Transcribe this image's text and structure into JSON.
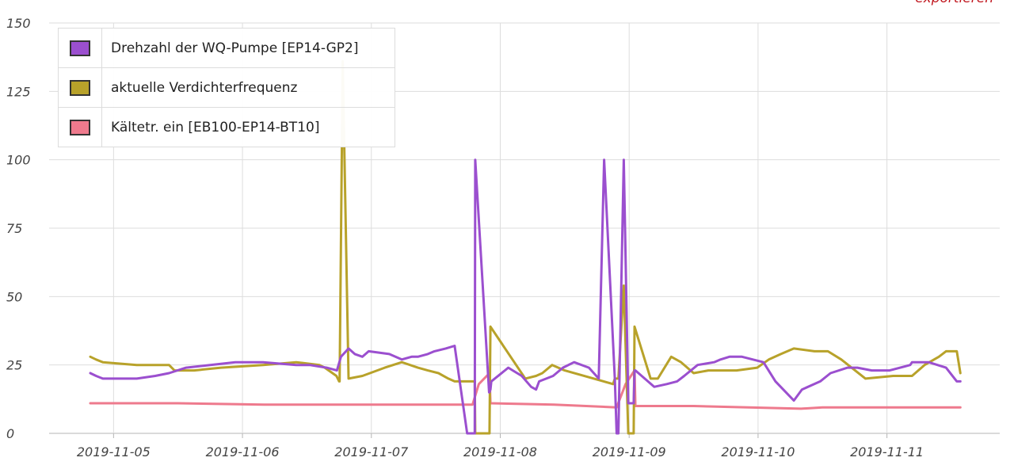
{
  "export_label": "exportieren",
  "chart_data": {
    "type": "line",
    "title": "",
    "xlabel": "",
    "ylabel": "",
    "ylim": [
      0,
      150
    ],
    "yticks": [
      0,
      25,
      50,
      75,
      100,
      125,
      150
    ],
    "xlim": [
      "2019-11-04T12:00",
      "2019-11-11T21:00"
    ],
    "xticks": [
      "2019-11-05",
      "2019-11-06",
      "2019-11-07",
      "2019-11-08",
      "2019-11-09",
      "2019-11-10",
      "2019-11-11"
    ],
    "grid": true,
    "legend_position": "top-left",
    "series": [
      {
        "name": "Drehzahl der WQ-Pumpe [EP14-GP2]",
        "color": "#9b4fcf",
        "x": [
          "2019-11-04T19:40",
          "2019-11-04T20:45",
          "2019-11-04T22:00",
          "2019-11-05T04:20",
          "2019-11-05T07:45",
          "2019-11-05T10:20",
          "2019-11-05T13:30",
          "2019-11-05T18:00",
          "2019-11-05T22:40",
          "2019-11-06T03:50",
          "2019-11-06T10:00",
          "2019-11-06T12:30",
          "2019-11-06T15:40",
          "2019-11-06T17:35",
          "2019-11-06T18:20",
          "2019-11-06T19:45",
          "2019-11-06T20:55",
          "2019-11-06T22:20",
          "2019-11-06T23:30",
          "2019-11-07T03:20",
          "2019-11-07T05:40",
          "2019-11-07T07:30",
          "2019-11-07T08:40",
          "2019-11-07T10:30",
          "2019-11-07T11:45",
          "2019-11-07T13:50",
          "2019-11-07T15:30",
          "2019-11-07T17:50",
          "2019-11-07T18:30",
          "2019-11-07T19:15",
          "2019-11-07T19:20",
          "2019-11-07T21:55",
          "2019-11-07T22:00",
          "2019-11-07T22:10",
          "2019-11-07T22:20",
          "2019-11-08T01:30",
          "2019-11-08T02:20",
          "2019-11-08T04:00",
          "2019-11-08T05:45",
          "2019-11-08T06:40",
          "2019-11-08T07:15",
          "2019-11-08T09:50",
          "2019-11-08T11:40",
          "2019-11-08T13:45",
          "2019-11-08T16:30",
          "2019-11-08T18:20",
          "2019-11-08T19:20",
          "2019-11-08T21:20",
          "2019-11-08T21:40",
          "2019-11-08T22:00",
          "2019-11-08T23:00",
          "2019-11-08T23:50",
          "2019-11-09T00:30",
          "2019-11-09T00:50",
          "2019-11-09T01:00",
          "2019-11-09T01:10",
          "2019-11-09T04:40",
          "2019-11-09T07:00",
          "2019-11-09T08:55",
          "2019-11-09T10:15",
          "2019-11-09T12:45",
          "2019-11-09T15:50",
          "2019-11-09T17:00",
          "2019-11-09T18:40",
          "2019-11-09T21:00",
          "2019-11-10T01:00",
          "2019-11-10T03:15",
          "2019-11-10T06:40",
          "2019-11-10T08:10",
          "2019-11-10T11:35",
          "2019-11-10T13:30",
          "2019-11-10T16:40",
          "2019-11-10T18:30",
          "2019-11-10T21:10",
          "2019-11-11T00:30",
          "2019-11-11T04:20",
          "2019-11-11T04:40",
          "2019-11-11T07:45",
          "2019-11-11T11:00",
          "2019-11-11T13:00",
          "2019-11-11T13:40"
        ],
        "values": [
          22,
          21,
          20,
          20,
          21,
          22,
          24,
          25,
          26,
          26,
          25,
          25,
          24,
          23,
          28,
          31,
          29,
          28,
          30,
          29,
          27,
          28,
          28,
          29,
          30,
          31,
          32,
          0,
          0,
          0,
          100,
          15,
          15,
          16,
          19,
          24,
          23,
          21,
          17,
          16,
          19,
          21,
          24,
          26,
          24,
          20,
          100,
          20,
          0,
          0,
          100,
          11,
          11,
          11,
          23,
          23,
          17,
          18,
          19,
          21,
          25,
          26,
          27,
          28,
          28,
          26,
          19,
          12,
          16,
          19,
          22,
          24,
          24,
          23,
          23,
          25,
          26,
          26,
          24,
          19,
          19
        ]
      },
      {
        "name": "aktuelle Verdichterfrequenz",
        "color": "#b8a22a",
        "x": [
          "2019-11-04T19:40",
          "2019-11-04T20:45",
          "2019-11-04T22:00",
          "2019-11-05T04:20",
          "2019-11-05T10:20",
          "2019-11-05T11:20",
          "2019-11-05T15:00",
          "2019-11-05T20:00",
          "2019-11-06T03:50",
          "2019-11-06T10:00",
          "2019-11-06T14:20",
          "2019-11-06T15:20",
          "2019-11-06T17:30",
          "2019-11-06T18:00",
          "2019-11-06T18:05",
          "2019-11-06T18:40",
          "2019-11-06T19:45",
          "2019-11-06T22:20",
          "2019-11-07T02:30",
          "2019-11-07T05:40",
          "2019-11-07T08:40",
          "2019-11-07T10:30",
          "2019-11-07T12:30",
          "2019-11-07T14:20",
          "2019-11-07T15:30",
          "2019-11-07T19:00",
          "2019-11-07T19:15",
          "2019-11-07T19:20",
          "2019-11-07T21:55",
          "2019-11-07T22:00",
          "2019-11-07T22:10",
          "2019-11-08T04:40",
          "2019-11-08T06:40",
          "2019-11-08T07:50",
          "2019-11-08T09:40",
          "2019-11-08T12:00",
          "2019-11-08T21:00",
          "2019-11-08T21:20",
          "2019-11-08T21:40",
          "2019-11-08T22:00",
          "2019-11-08T23:00",
          "2019-11-08T23:50",
          "2019-11-09T00:30",
          "2019-11-09T00:50",
          "2019-11-09T01:00",
          "2019-11-09T04:00",
          "2019-11-09T05:20",
          "2019-11-09T07:50",
          "2019-11-09T09:40",
          "2019-11-09T12:00",
          "2019-11-09T14:45",
          "2019-11-09T16:30",
          "2019-11-09T20:00",
          "2019-11-09T23:50",
          "2019-11-10T02:00",
          "2019-11-10T04:15",
          "2019-11-10T06:40",
          "2019-11-10T10:30",
          "2019-11-10T13:00",
          "2019-11-10T15:30",
          "2019-11-10T20:00",
          "2019-11-11T01:10",
          "2019-11-11T04:40",
          "2019-11-11T07:00",
          "2019-11-11T09:40",
          "2019-11-11T11:00",
          "2019-11-11T13:00",
          "2019-11-11T13:40"
        ],
        "values": [
          28,
          27,
          26,
          25,
          25,
          23,
          23,
          24,
          25,
          26,
          25,
          24,
          21,
          19,
          19,
          136,
          20,
          21,
          24,
          26,
          24,
          23,
          22,
          20,
          19,
          19,
          19,
          0,
          0,
          0,
          39,
          20,
          21,
          22,
          25,
          23,
          18,
          20,
          20,
          20,
          54,
          0,
          0,
          0,
          39,
          20,
          20,
          28,
          26,
          22,
          23,
          23,
          23,
          24,
          27,
          29,
          31,
          30,
          30,
          27,
          20,
          21,
          21,
          25,
          28,
          30,
          30,
          22
        ]
      },
      {
        "name": "Kältetr. ein [EB100-EP14-BT10]",
        "color": "#ee7a8d",
        "x": [
          "2019-11-04T19:40",
          "2019-11-05T12:00",
          "2019-11-06T04:00",
          "2019-11-06T20:00",
          "2019-11-07T12:00",
          "2019-11-07T18:50",
          "2019-11-07T20:00",
          "2019-11-07T22:00",
          "2019-11-07T22:10",
          "2019-11-08T10:00",
          "2019-11-08T21:40",
          "2019-11-08T23:20",
          "2019-11-09T01:00",
          "2019-11-09T01:10",
          "2019-11-09T12:00",
          "2019-11-10T08:00",
          "2019-11-10T12:00",
          "2019-11-11T13:40"
        ],
        "values": [
          11,
          11,
          10.5,
          10.5,
          10.5,
          10.5,
          18,
          22,
          11,
          10.5,
          9.5,
          18,
          23,
          10,
          10,
          9,
          9.5,
          9.5
        ]
      }
    ]
  }
}
